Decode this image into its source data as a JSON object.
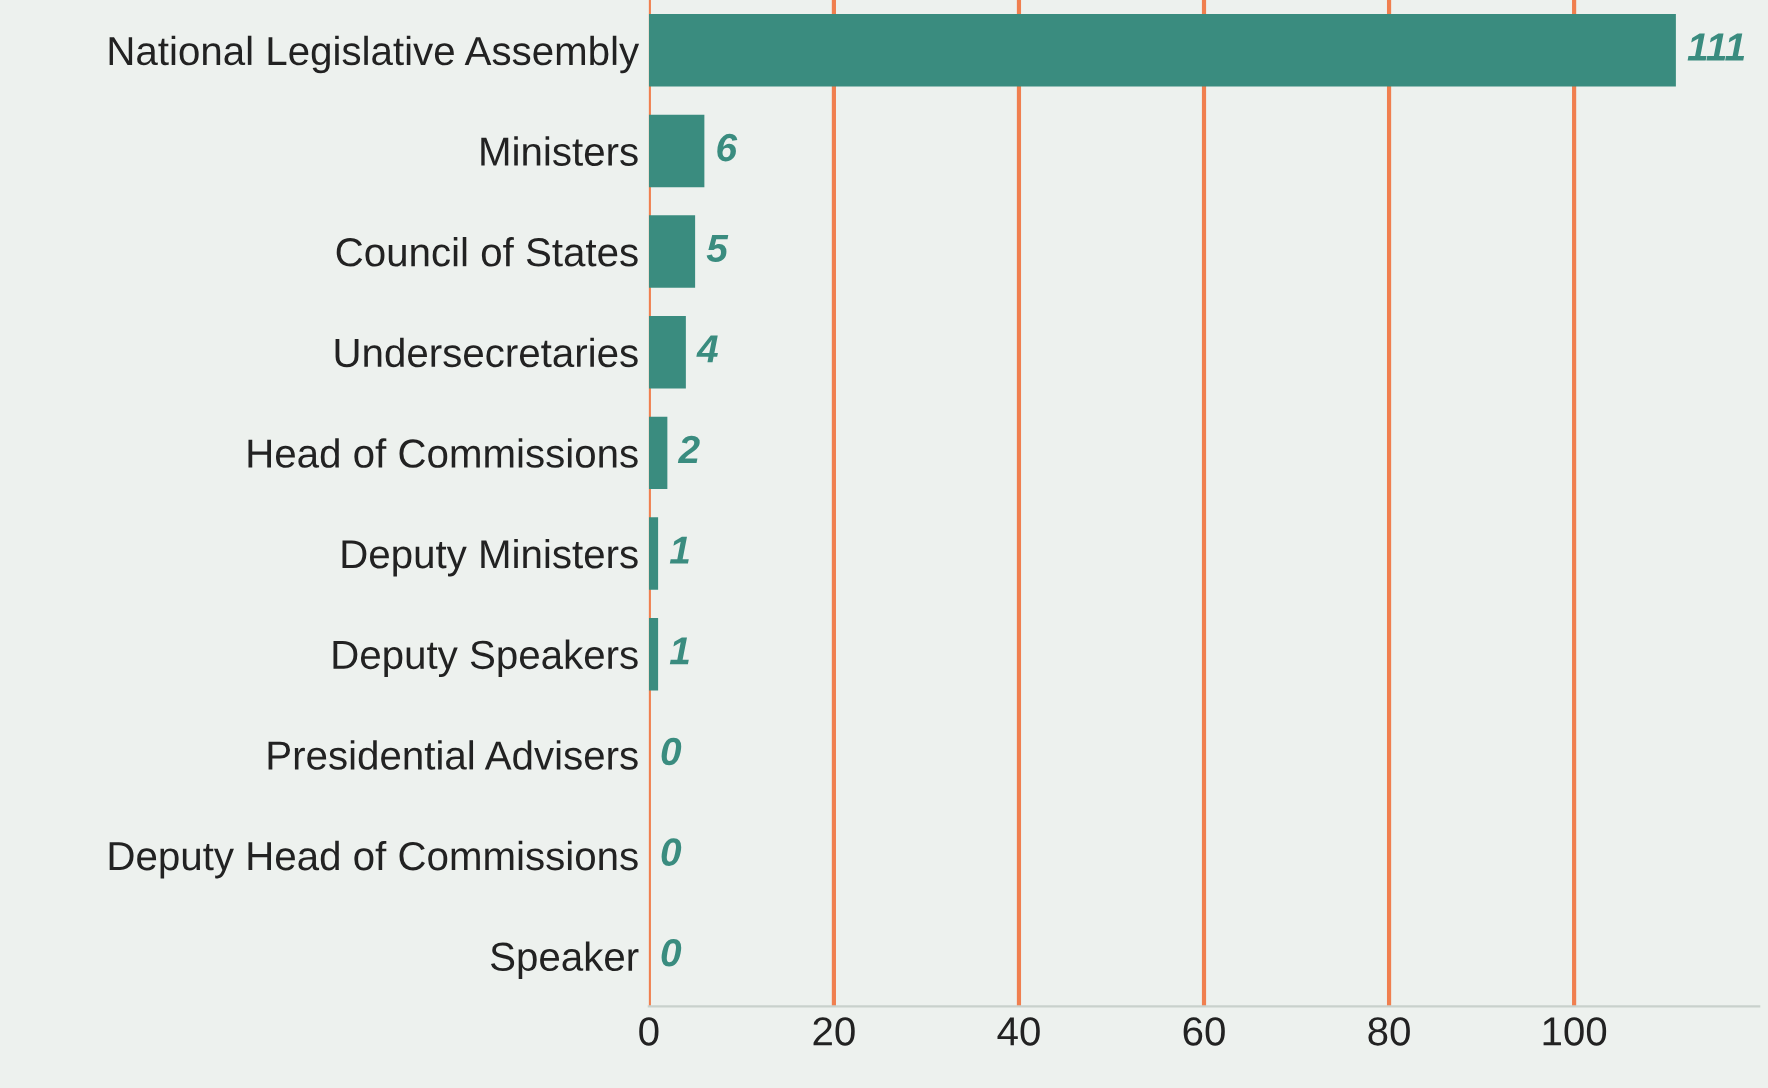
{
  "chart_data": {
    "type": "bar",
    "orientation": "horizontal",
    "categories": [
      "National Legislative Assembly",
      "Ministers",
      "Council of States",
      "Undersecretaries",
      "Head of Commissions",
      "Deputy Ministers",
      "Deputy Speakers",
      "Presidential Advisers",
      "Deputy Head of Commissions",
      "Speaker"
    ],
    "values": [
      111,
      6,
      5,
      4,
      2,
      1,
      1,
      0,
      0,
      0
    ],
    "color": "#3a8c7f",
    "data_labels": true,
    "xlim": [
      0,
      120
    ],
    "xticks": [
      0,
      20,
      40,
      60,
      80,
      100
    ],
    "grid": "x"
  }
}
